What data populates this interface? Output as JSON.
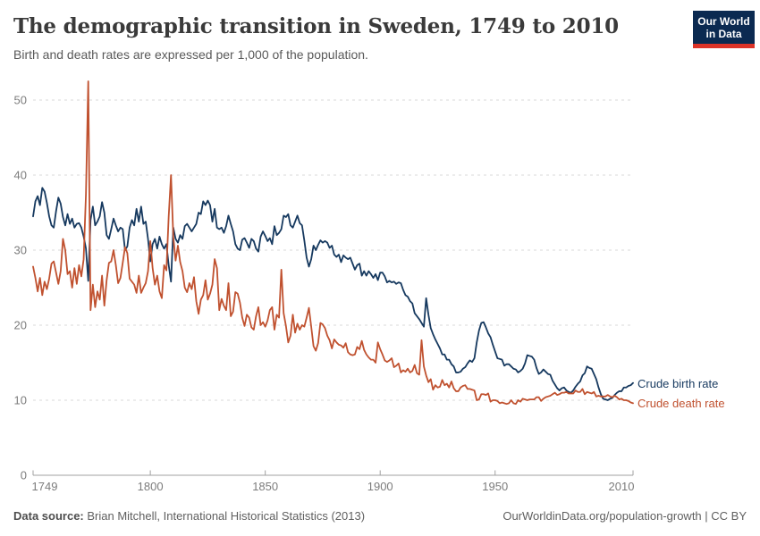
{
  "header": {
    "title": "The demographic transition in Sweden, 1749 to 2010",
    "subtitle": "Birth and death rates are expressed per 1,000 of the population.",
    "logo": {
      "line1": "Our World",
      "line2": "in Data",
      "bg_color": "#0b2a51",
      "bar_color": "#dc3328"
    }
  },
  "chart_data": {
    "type": "line",
    "title": "The demographic transition in Sweden, 1749 to 2010",
    "xlabel": "",
    "ylabel": "",
    "x_range": {
      "start": 1749,
      "end": 2010,
      "step": 1
    },
    "xticks": [
      1749,
      1800,
      1850,
      1900,
      1950,
      2010
    ],
    "yticks": [
      0,
      10,
      20,
      30,
      40,
      50
    ],
    "ylim": [
      0,
      53
    ],
    "grid": "dashed-horizontal",
    "legend_position": "right-of-line-ends",
    "series": [
      {
        "name": "Crude birth rate",
        "color": "#16395f",
        "values": [
          34.5,
          36.5,
          37.2,
          36.0,
          38.3,
          37.8,
          36.3,
          34.5,
          33.3,
          33.0,
          35.2,
          37.0,
          36.2,
          34.4,
          33.3,
          34.8,
          33.5,
          34.2,
          33.0,
          33.5,
          33.6,
          33.0,
          31.8,
          30.2,
          25.9,
          34.0,
          35.8,
          33.3,
          33.8,
          34.5,
          36.4,
          35.0,
          32.0,
          31.5,
          32.8,
          34.2,
          33.3,
          32.5,
          33.0,
          32.8,
          30.0,
          30.5,
          33.0,
          34.0,
          33.3,
          35.5,
          33.8,
          35.8,
          33.5,
          33.8,
          31.5,
          28.5,
          30.8,
          31.5,
          30.2,
          31.8,
          30.8,
          30.2,
          30.8,
          28.0,
          25.8,
          33.0,
          31.5,
          31.0,
          32.0,
          31.5,
          33.2,
          33.5,
          33.0,
          32.5,
          33.0,
          33.5,
          35.0,
          34.8,
          36.5,
          36.0,
          36.6,
          36.0,
          33.8,
          35.5,
          33.0,
          32.8,
          33.0,
          32.3,
          33.2,
          34.6,
          33.5,
          32.5,
          30.8,
          30.2,
          30.0,
          31.4,
          31.6,
          31.0,
          30.3,
          31.5,
          31.2,
          30.2,
          29.8,
          31.8,
          32.5,
          31.9,
          31.2,
          31.6,
          30.8,
          33.2,
          32.0,
          32.3,
          32.8,
          34.6,
          34.4,
          34.8,
          33.3,
          33.0,
          33.8,
          34.6,
          33.6,
          33.3,
          31.3,
          29.0,
          27.8,
          28.8,
          30.6,
          30.0,
          30.7,
          31.3,
          31.0,
          31.2,
          31.0,
          30.3,
          30.6,
          29.4,
          29.1,
          29.4,
          28.4,
          29.3,
          29.0,
          28.8,
          29.0,
          28.2,
          27.4,
          28.0,
          28.2,
          26.6,
          27.2,
          26.6,
          27.2,
          26.8,
          26.3,
          26.8,
          26.0,
          27.0,
          27.0,
          26.5,
          25.7,
          25.9,
          25.7,
          25.8,
          25.5,
          25.7,
          25.6,
          24.7,
          24.0,
          23.8,
          23.2,
          22.9,
          21.6,
          21.2,
          20.8,
          20.3,
          19.8,
          23.6,
          21.4,
          19.6,
          18.8,
          18.1,
          17.5,
          16.9,
          16.1,
          16.1,
          15.4,
          15.4,
          14.8,
          14.5,
          13.7,
          13.7,
          13.8,
          14.2,
          14.4,
          14.9,
          15.3,
          15.1,
          15.6,
          17.7,
          19.3,
          20.3,
          20.4,
          19.7,
          18.9,
          18.4,
          17.4,
          16.5,
          15.6,
          15.5,
          15.4,
          14.6,
          14.8,
          14.8,
          14.5,
          14.2,
          14.1,
          13.7,
          13.9,
          14.2,
          14.9,
          16.0,
          15.9,
          15.8,
          15.4,
          14.3,
          13.5,
          13.7,
          14.1,
          13.8,
          13.5,
          13.4,
          12.6,
          12.1,
          11.6,
          11.3,
          11.6,
          11.7,
          11.3,
          11.1,
          11.0,
          11.3,
          11.8,
          12.2,
          12.5,
          13.3,
          13.6,
          14.5,
          14.3,
          14.2,
          13.5,
          12.8,
          11.7,
          10.8,
          10.2,
          10.1,
          10.0,
          10.2,
          10.3,
          10.7,
          11.0,
          11.2,
          11.2,
          11.7,
          11.7,
          11.9,
          12.0,
          12.3
        ]
      },
      {
        "name": "Crude death rate",
        "color": "#c0512f",
        "values": [
          27.8,
          26.3,
          24.5,
          26.3,
          24.0,
          25.8,
          24.8,
          26.2,
          28.2,
          28.5,
          27.0,
          25.5,
          27.2,
          31.5,
          30.0,
          26.8,
          27.2,
          25.0,
          27.6,
          25.5,
          28.0,
          26.5,
          28.8,
          37.5,
          52.5,
          22.0,
          25.4,
          22.4,
          24.5,
          23.4,
          26.6,
          22.6,
          26.0,
          28.3,
          28.5,
          30.0,
          28.0,
          25.6,
          26.3,
          28.3,
          30.4,
          29.6,
          26.2,
          25.8,
          25.4,
          24.3,
          26.6,
          24.3,
          25.0,
          25.6,
          27.2,
          31.2,
          27.6,
          25.4,
          26.6,
          24.5,
          23.6,
          28.0,
          27.3,
          34.5,
          40.0,
          31.8,
          28.6,
          30.6,
          28.4,
          27.2,
          25.0,
          24.4,
          25.6,
          24.8,
          26.4,
          23.2,
          21.5,
          23.4,
          24.0,
          26.0,
          23.4,
          24.2,
          25.4,
          28.8,
          27.6,
          22.0,
          23.5,
          22.6,
          22.0,
          25.6,
          21.2,
          21.8,
          24.4,
          24.2,
          23.0,
          21.0,
          19.9,
          21.4,
          21.0,
          19.7,
          19.4,
          21.2,
          22.4,
          20.0,
          20.4,
          19.8,
          20.6,
          22.0,
          22.4,
          19.4,
          21.4,
          21.0,
          27.4,
          21.6,
          19.9,
          17.7,
          18.6,
          21.4,
          19.0,
          20.2,
          19.4,
          20.0,
          19.8,
          21.0,
          22.3,
          19.8,
          17.2,
          16.6,
          17.6,
          20.3,
          20.1,
          19.6,
          18.6,
          18.0,
          16.9,
          18.1,
          17.7,
          17.4,
          17.3,
          17.0,
          17.6,
          16.4,
          16.1,
          16.0,
          16.1,
          17.1,
          16.8,
          17.9,
          16.7,
          16.1,
          15.7,
          15.4,
          15.4,
          15.0,
          17.7,
          16.8,
          16.1,
          15.3,
          15.1,
          15.3,
          15.6,
          14.4,
          14.6,
          14.9,
          13.7,
          14.0,
          13.8,
          14.2,
          13.7,
          13.9,
          14.7,
          13.6,
          13.4,
          18.0,
          14.5,
          13.3,
          12.4,
          12.8,
          11.4,
          12.0,
          11.7,
          11.8,
          12.7,
          12.0,
          12.2,
          11.7,
          12.5,
          11.6,
          11.2,
          11.2,
          11.7,
          11.9,
          12.0,
          11.5,
          11.5,
          11.4,
          11.3,
          10.0,
          10.1,
          10.8,
          10.8,
          10.7,
          10.9,
          9.8,
          10.0,
          10.0,
          9.9,
          9.6,
          9.7,
          9.6,
          9.5,
          9.6,
          10.0,
          9.6,
          9.5,
          10.0,
          9.8,
          10.2,
          10.1,
          10.0,
          10.1,
          10.1,
          10.1,
          10.4,
          10.4,
          9.9,
          10.2,
          10.4,
          10.5,
          10.6,
          10.8,
          11.0,
          10.7,
          10.8,
          11.0,
          11.0,
          11.1,
          10.9,
          10.9,
          10.9,
          11.3,
          11.1,
          11.1,
          11.5,
          10.8,
          11.1,
          11.0,
          10.9,
          11.1,
          10.5,
          10.6,
          10.5,
          10.5,
          10.5,
          10.7,
          10.5,
          10.4,
          10.6,
          10.4,
          10.1,
          10.2,
          10.0,
          10.0,
          9.9,
          9.7,
          9.6
        ]
      }
    ],
    "style": {
      "gridline_color": "#d9d9d9",
      "axis_color": "#a0a0a0",
      "tick_label_color": "#7c7c7c"
    }
  },
  "footer": {
    "source_label": "Data source:",
    "source_text": " Brian Mitchell, International Historical Statistics (2013)",
    "credit": "OurWorldinData.org/population-growth | CC BY"
  }
}
